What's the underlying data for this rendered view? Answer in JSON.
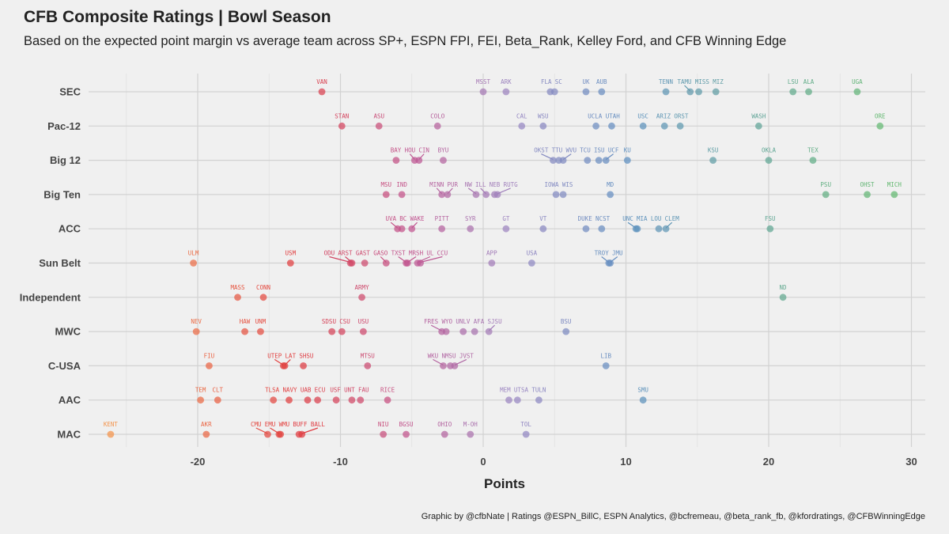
{
  "title": "CFB Composite Ratings | Bowl Season",
  "subtitle": "Based on the expected point margin vs average team across SP+, ESPN FPI, FEI, Beta_Rank, Kelley Ford, and CFB Winning Edge",
  "caption": "Graphic by @cfbNate | Ratings @ESPN_BillC, ESPN Analytics, @bcfremeau, @beta_rank_fb, @kfordratings, @CFBWinningEdge",
  "chart_data": {
    "type": "scatter",
    "title": "CFB Composite Ratings | Bowl Season",
    "xlabel": "Points",
    "ylabel": "",
    "xlim": [
      -28,
      31
    ],
    "xticks": [
      -20,
      -10,
      0,
      10,
      20,
      30
    ],
    "grid": true,
    "color_scale": [
      "#f4934a",
      "#e03a3e",
      "#c05490",
      "#9a86c2",
      "#5d8fc0",
      "#63b870"
    ],
    "conferences": [
      {
        "name": "SEC",
        "teams": [
          {
            "team": "VAN",
            "value": -11.3
          },
          {
            "team": "MSST",
            "value": 0
          },
          {
            "team": "ARK",
            "value": 1.6
          },
          {
            "team": "FLA",
            "value": 4.7
          },
          {
            "team": "SC",
            "value": 5.0
          },
          {
            "team": "UK",
            "value": 7.2
          },
          {
            "team": "AUB",
            "value": 8.3
          },
          {
            "team": "TENN",
            "value": 12.8
          },
          {
            "team": "TAMU",
            "value": 14.5
          },
          {
            "team": "MISS",
            "value": 15.1
          },
          {
            "team": "MIZ",
            "value": 16.3
          },
          {
            "team": "LSU",
            "value": 21.7
          },
          {
            "team": "ALA",
            "value": 22.8
          },
          {
            "team": "UGA",
            "value": 26.2
          }
        ]
      },
      {
        "name": "Pac-12",
        "teams": [
          {
            "team": "STAN",
            "value": -9.9
          },
          {
            "team": "ASU",
            "value": -7.3
          },
          {
            "team": "COLO",
            "value": -3.2
          },
          {
            "team": "CAL",
            "value": 2.7
          },
          {
            "team": "WSU",
            "value": 4.2
          },
          {
            "team": "UCLA",
            "value": 7.9
          },
          {
            "team": "UTAH",
            "value": 9.0
          },
          {
            "team": "USC",
            "value": 11.2
          },
          {
            "team": "ARIZ",
            "value": 12.7
          },
          {
            "team": "ORST",
            "value": 13.8
          },
          {
            "team": "WASH",
            "value": 19.3
          },
          {
            "team": "ORE",
            "value": 27.8
          }
        ]
      },
      {
        "name": "Big 12",
        "teams": [
          {
            "team": "BAY",
            "value": -6.1
          },
          {
            "team": "HOU",
            "value": -4.8
          },
          {
            "team": "CIN",
            "value": -4.5
          },
          {
            "team": "BYU",
            "value": -2.8
          },
          {
            "team": "OKST",
            "value": 4.9
          },
          {
            "team": "TTU",
            "value": 5.3
          },
          {
            "team": "WVU",
            "value": 5.6
          },
          {
            "team": "TCU",
            "value": 7.3
          },
          {
            "team": "ISU",
            "value": 8.1
          },
          {
            "team": "UCF",
            "value": 8.6
          },
          {
            "team": "KU",
            "value": 10.1
          },
          {
            "team": "KSU",
            "value": 16.1
          },
          {
            "team": "OKLA",
            "value": 20.0
          },
          {
            "team": "TEX",
            "value": 23.1
          }
        ]
      },
      {
        "name": "Big Ten",
        "teams": [
          {
            "team": "MSU",
            "value": -6.8
          },
          {
            "team": "IND",
            "value": -5.7
          },
          {
            "team": "MINN",
            "value": -2.9
          },
          {
            "team": "PUR",
            "value": -2.5
          },
          {
            "team": "NW",
            "value": -0.5
          },
          {
            "team": "ILL",
            "value": 0.2
          },
          {
            "team": "NEB",
            "value": 0.8
          },
          {
            "team": "RUTG",
            "value": 1.0
          },
          {
            "team": "IOWA",
            "value": 5.1
          },
          {
            "team": "WIS",
            "value": 5.6
          },
          {
            "team": "MD",
            "value": 8.9
          },
          {
            "team": "PSU",
            "value": 24.0
          },
          {
            "team": "OHST",
            "value": 26.9
          },
          {
            "team": "MICH",
            "value": 28.8
          }
        ]
      },
      {
        "name": "ACC",
        "teams": [
          {
            "team": "UVA",
            "value": -6.0
          },
          {
            "team": "BC",
            "value": -5.7
          },
          {
            "team": "WAKE",
            "value": -5.0
          },
          {
            "team": "PITT",
            "value": -2.9
          },
          {
            "team": "SYR",
            "value": -0.9
          },
          {
            "team": "GT",
            "value": 1.6
          },
          {
            "team": "VT",
            "value": 4.2
          },
          {
            "team": "DUKE",
            "value": 7.2
          },
          {
            "team": "NCST",
            "value": 8.3
          },
          {
            "team": "UNC",
            "value": 10.7
          },
          {
            "team": "MIA",
            "value": 10.8
          },
          {
            "team": "LOU",
            "value": 12.3
          },
          {
            "team": "CLEM",
            "value": 12.8
          },
          {
            "team": "FSU",
            "value": 20.1
          }
        ]
      },
      {
        "name": "Sun Belt",
        "teams": [
          {
            "team": "ULM",
            "value": -20.3
          },
          {
            "team": "USM",
            "value": -13.5
          },
          {
            "team": "ODU",
            "value": -9.3
          },
          {
            "team": "ARST",
            "value": -9.2
          },
          {
            "team": "GAST",
            "value": -8.3
          },
          {
            "team": "GASO",
            "value": -6.8
          },
          {
            "team": "TXST",
            "value": -5.4
          },
          {
            "team": "MRSH",
            "value": -5.3
          },
          {
            "team": "UL",
            "value": -4.6
          },
          {
            "team": "CCU",
            "value": -4.4
          },
          {
            "team": "APP",
            "value": 0.6
          },
          {
            "team": "USA",
            "value": 3.4
          },
          {
            "team": "TROY",
            "value": 8.8
          },
          {
            "team": "JMU",
            "value": 8.9
          }
        ]
      },
      {
        "name": "Independent",
        "teams": [
          {
            "team": "MASS",
            "value": -17.2
          },
          {
            "team": "CONN",
            "value": -15.4
          },
          {
            "team": "ARMY",
            "value": -8.5
          },
          {
            "team": "ND",
            "value": 21.0
          }
        ]
      },
      {
        "name": "MWC",
        "teams": [
          {
            "team": "NEV",
            "value": -20.1
          },
          {
            "team": "HAW",
            "value": -16.7
          },
          {
            "team": "UNM",
            "value": -15.6
          },
          {
            "team": "SDSU",
            "value": -10.6
          },
          {
            "team": "CSU",
            "value": -9.9
          },
          {
            "team": "USU",
            "value": -8.4
          },
          {
            "team": "FRES",
            "value": -2.9
          },
          {
            "team": "WYO",
            "value": -2.6
          },
          {
            "team": "UNLV",
            "value": -1.4
          },
          {
            "team": "AFA",
            "value": -0.6
          },
          {
            "team": "SJSU",
            "value": 0.4
          },
          {
            "team": "BSU",
            "value": 5.8
          }
        ]
      },
      {
        "name": "C-USA",
        "teams": [
          {
            "team": "FIU",
            "value": -19.2
          },
          {
            "team": "UTEP",
            "value": -14.0
          },
          {
            "team": "LAT",
            "value": -13.9
          },
          {
            "team": "SHSU",
            "value": -12.6
          },
          {
            "team": "MTSU",
            "value": -8.1
          },
          {
            "team": "WKU",
            "value": -2.8
          },
          {
            "team": "NMSU",
            "value": -2.3
          },
          {
            "team": "JVST",
            "value": -2.0
          },
          {
            "team": "LIB",
            "value": 8.6
          }
        ]
      },
      {
        "name": "AAC",
        "teams": [
          {
            "team": "TEM",
            "value": -19.8
          },
          {
            "team": "CLT",
            "value": -18.6
          },
          {
            "team": "TLSA",
            "value": -14.7
          },
          {
            "team": "NAVY",
            "value": -13.6
          },
          {
            "team": "UAB",
            "value": -12.3
          },
          {
            "team": "ECU",
            "value": -11.6
          },
          {
            "team": "USF",
            "value": -10.3
          },
          {
            "team": "UNT",
            "value": -9.2
          },
          {
            "team": "FAU",
            "value": -8.6
          },
          {
            "team": "RICE",
            "value": -6.7
          },
          {
            "team": "MEM",
            "value": 1.8
          },
          {
            "team": "UTSA",
            "value": 2.4
          },
          {
            "team": "TULN",
            "value": 3.9
          },
          {
            "team": "SMU",
            "value": 11.2
          }
        ]
      },
      {
        "name": "MAC",
        "teams": [
          {
            "team": "KENT",
            "value": -26.1
          },
          {
            "team": "AKR",
            "value": -19.4
          },
          {
            "team": "CMU",
            "value": -15.1
          },
          {
            "team": "EMU",
            "value": -14.3
          },
          {
            "team": "WMU",
            "value": -14.2
          },
          {
            "team": "BUFF",
            "value": -12.9
          },
          {
            "team": "BALL",
            "value": -12.7
          },
          {
            "team": "NIU",
            "value": -7.0
          },
          {
            "team": "BGSU",
            "value": -5.4
          },
          {
            "team": "OHIO",
            "value": -2.7
          },
          {
            "team": "M-OH",
            "value": -0.9
          },
          {
            "team": "TOL",
            "value": 3.0
          }
        ]
      }
    ]
  }
}
